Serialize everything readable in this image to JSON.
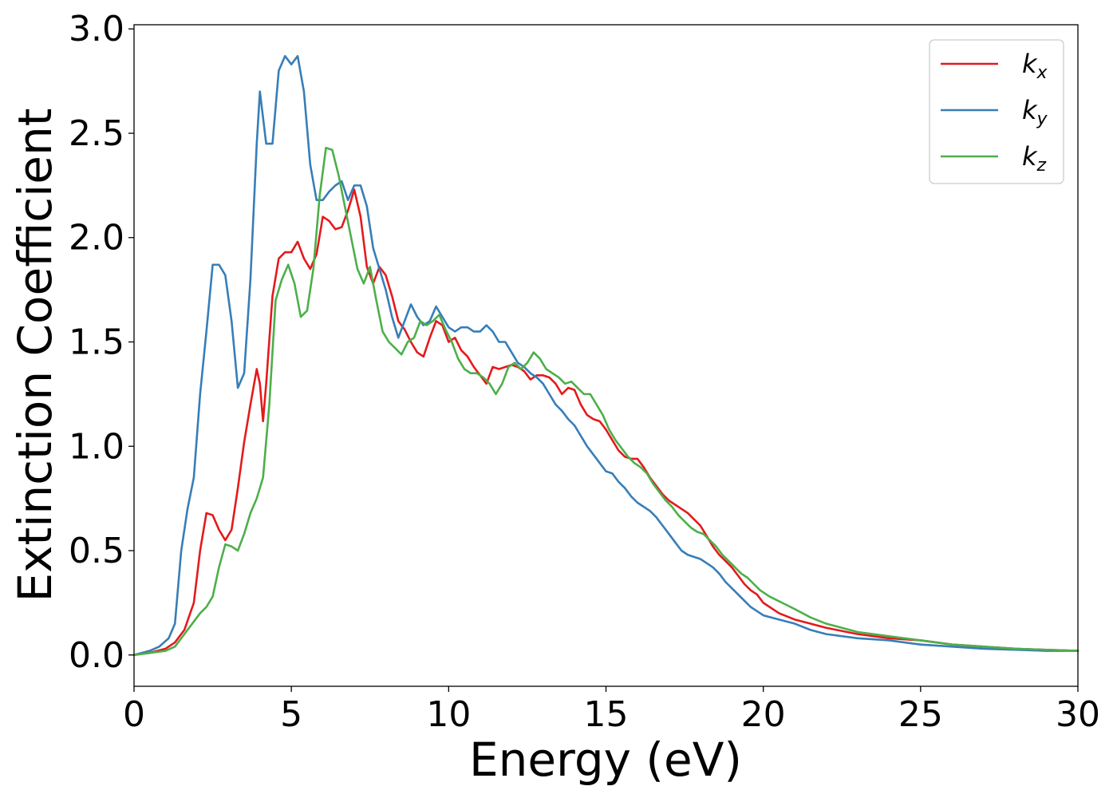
{
  "chart_data": {
    "type": "line",
    "xlabel": "Energy (eV)",
    "ylabel": "Extinction Coefficient",
    "xlim": [
      0,
      30
    ],
    "ylim": [
      -0.15,
      3.02
    ],
    "xticks": [
      0,
      5,
      10,
      15,
      20,
      25,
      30
    ],
    "xtick_labels": [
      "0",
      "5",
      "10",
      "15",
      "20",
      "25",
      "30"
    ],
    "yticks": [
      0.0,
      0.5,
      1.0,
      1.5,
      2.0,
      2.5,
      3.0
    ],
    "ytick_labels": [
      "0.0",
      "0.5",
      "1.0",
      "1.5",
      "2.0",
      "2.5",
      "3.0"
    ],
    "grid": false,
    "legend_position": "top-right",
    "series": [
      {
        "name": "k_x",
        "label_main": "k",
        "label_sub": "x",
        "color": "#e41a1c",
        "x": [
          0,
          0.5,
          1.0,
          1.3,
          1.6,
          1.9,
          2.1,
          2.3,
          2.5,
          2.7,
          2.9,
          3.1,
          3.3,
          3.5,
          3.7,
          3.9,
          4.0,
          4.1,
          4.2,
          4.4,
          4.6,
          4.8,
          5.0,
          5.2,
          5.4,
          5.6,
          5.8,
          6.0,
          6.2,
          6.4,
          6.6,
          6.8,
          7.0,
          7.2,
          7.4,
          7.6,
          7.8,
          8.0,
          8.2,
          8.4,
          8.6,
          8.8,
          9.0,
          9.2,
          9.4,
          9.6,
          9.8,
          10.0,
          10.2,
          10.4,
          10.6,
          10.8,
          11.0,
          11.2,
          11.4,
          11.6,
          11.8,
          12.0,
          12.2,
          12.4,
          12.6,
          12.8,
          13.0,
          13.2,
          13.4,
          13.6,
          13.8,
          14.0,
          14.2,
          14.4,
          14.6,
          14.8,
          15.0,
          15.2,
          15.4,
          15.6,
          15.8,
          16.0,
          16.2,
          16.4,
          16.6,
          16.8,
          17.0,
          17.2,
          17.4,
          17.6,
          17.8,
          18.0,
          18.2,
          18.4,
          18.6,
          18.8,
          19.0,
          19.2,
          19.4,
          19.6,
          19.8,
          20.0,
          20.5,
          21.0,
          21.5,
          22.0,
          23.0,
          24.0,
          25.0,
          26.0,
          27.0,
          28.0,
          29.0,
          30.0
        ],
        "values": [
          0.0,
          0.01,
          0.03,
          0.06,
          0.12,
          0.25,
          0.5,
          0.68,
          0.67,
          0.6,
          0.55,
          0.6,
          0.8,
          1.02,
          1.2,
          1.37,
          1.3,
          1.12,
          1.3,
          1.72,
          1.9,
          1.93,
          1.93,
          1.98,
          1.9,
          1.85,
          1.92,
          2.1,
          2.08,
          2.04,
          2.05,
          2.13,
          2.23,
          2.1,
          1.86,
          1.78,
          1.86,
          1.82,
          1.72,
          1.6,
          1.56,
          1.5,
          1.45,
          1.43,
          1.52,
          1.6,
          1.58,
          1.5,
          1.52,
          1.46,
          1.43,
          1.38,
          1.34,
          1.3,
          1.38,
          1.37,
          1.38,
          1.39,
          1.38,
          1.36,
          1.32,
          1.34,
          1.34,
          1.33,
          1.3,
          1.25,
          1.28,
          1.27,
          1.2,
          1.15,
          1.13,
          1.12,
          1.08,
          1.03,
          0.98,
          0.95,
          0.94,
          0.94,
          0.9,
          0.85,
          0.81,
          0.77,
          0.74,
          0.72,
          0.7,
          0.68,
          0.65,
          0.62,
          0.57,
          0.52,
          0.48,
          0.45,
          0.42,
          0.38,
          0.34,
          0.31,
          0.29,
          0.25,
          0.2,
          0.17,
          0.15,
          0.13,
          0.1,
          0.08,
          0.07,
          0.05,
          0.04,
          0.03,
          0.025,
          0.02
        ]
      },
      {
        "name": "k_y",
        "label_main": "k",
        "label_sub": "y",
        "color": "#377eb8",
        "x": [
          0,
          0.5,
          0.8,
          1.1,
          1.3,
          1.5,
          1.7,
          1.9,
          2.1,
          2.3,
          2.5,
          2.7,
          2.9,
          3.1,
          3.3,
          3.5,
          3.7,
          3.9,
          4.0,
          4.2,
          4.4,
          4.6,
          4.8,
          5.0,
          5.2,
          5.4,
          5.6,
          5.8,
          6.0,
          6.2,
          6.4,
          6.6,
          6.8,
          7.0,
          7.2,
          7.4,
          7.6,
          7.8,
          8.0,
          8.2,
          8.4,
          8.6,
          8.8,
          9.0,
          9.2,
          9.4,
          9.6,
          9.8,
          10.0,
          10.2,
          10.4,
          10.6,
          10.8,
          11.0,
          11.2,
          11.4,
          11.6,
          11.8,
          12.0,
          12.2,
          12.4,
          12.6,
          12.8,
          13.0,
          13.2,
          13.4,
          13.6,
          13.8,
          14.0,
          14.2,
          14.4,
          14.6,
          14.8,
          15.0,
          15.2,
          15.4,
          15.6,
          15.8,
          16.0,
          16.2,
          16.4,
          16.6,
          16.8,
          17.0,
          17.2,
          17.4,
          17.6,
          17.8,
          18.0,
          18.2,
          18.4,
          18.6,
          18.8,
          19.0,
          19.2,
          19.4,
          19.6,
          19.8,
          20.0,
          20.5,
          21.0,
          21.5,
          22.0,
          23.0,
          24.0,
          25.0,
          26.0,
          27.0,
          28.0,
          29.0,
          30.0
        ],
        "values": [
          0.0,
          0.02,
          0.04,
          0.08,
          0.15,
          0.5,
          0.7,
          0.85,
          1.25,
          1.55,
          1.87,
          1.87,
          1.82,
          1.6,
          1.28,
          1.35,
          1.8,
          2.45,
          2.7,
          2.45,
          2.45,
          2.8,
          2.87,
          2.83,
          2.87,
          2.7,
          2.35,
          2.18,
          2.18,
          2.22,
          2.25,
          2.27,
          2.18,
          2.25,
          2.25,
          2.15,
          1.95,
          1.85,
          1.75,
          1.62,
          1.52,
          1.6,
          1.68,
          1.62,
          1.58,
          1.6,
          1.67,
          1.62,
          1.57,
          1.55,
          1.57,
          1.57,
          1.55,
          1.55,
          1.58,
          1.55,
          1.5,
          1.5,
          1.45,
          1.4,
          1.38,
          1.35,
          1.33,
          1.3,
          1.25,
          1.2,
          1.17,
          1.13,
          1.1,
          1.05,
          1.0,
          0.96,
          0.92,
          0.88,
          0.87,
          0.83,
          0.8,
          0.76,
          0.73,
          0.71,
          0.69,
          0.66,
          0.62,
          0.58,
          0.54,
          0.5,
          0.48,
          0.47,
          0.46,
          0.44,
          0.42,
          0.39,
          0.35,
          0.32,
          0.29,
          0.26,
          0.23,
          0.21,
          0.19,
          0.17,
          0.15,
          0.12,
          0.1,
          0.08,
          0.07,
          0.05,
          0.04,
          0.03,
          0.025,
          0.02,
          0.02
        ]
      },
      {
        "name": "k_z",
        "label_main": "k",
        "label_sub": "z",
        "color": "#4daf4a",
        "x": [
          0,
          0.5,
          1.0,
          1.3,
          1.6,
          1.9,
          2.1,
          2.3,
          2.5,
          2.7,
          2.9,
          3.1,
          3.3,
          3.5,
          3.7,
          3.9,
          4.1,
          4.3,
          4.5,
          4.7,
          4.9,
          5.1,
          5.3,
          5.5,
          5.7,
          5.9,
          6.1,
          6.3,
          6.5,
          6.7,
          6.9,
          7.1,
          7.3,
          7.5,
          7.7,
          7.9,
          8.1,
          8.3,
          8.5,
          8.7,
          8.9,
          9.1,
          9.3,
          9.5,
          9.7,
          9.9,
          10.1,
          10.3,
          10.5,
          10.7,
          10.9,
          11.1,
          11.3,
          11.5,
          11.7,
          11.9,
          12.1,
          12.3,
          12.5,
          12.7,
          12.9,
          13.1,
          13.3,
          13.5,
          13.7,
          13.9,
          14.1,
          14.3,
          14.5,
          14.7,
          14.9,
          15.1,
          15.3,
          15.5,
          15.7,
          15.9,
          16.1,
          16.3,
          16.5,
          16.7,
          16.9,
          17.1,
          17.3,
          17.5,
          17.7,
          17.9,
          18.1,
          18.3,
          18.5,
          18.7,
          18.9,
          19.1,
          19.3,
          19.5,
          19.7,
          19.9,
          20.2,
          20.6,
          21.0,
          21.5,
          22.0,
          23.0,
          24.0,
          25.0,
          26.0,
          27.0,
          28.0,
          29.0,
          30.0
        ],
        "values": [
          0.0,
          0.01,
          0.02,
          0.04,
          0.1,
          0.16,
          0.2,
          0.23,
          0.28,
          0.42,
          0.53,
          0.52,
          0.5,
          0.58,
          0.68,
          0.75,
          0.85,
          1.2,
          1.7,
          1.8,
          1.87,
          1.78,
          1.62,
          1.65,
          1.85,
          2.2,
          2.43,
          2.42,
          2.3,
          2.15,
          2.0,
          1.85,
          1.78,
          1.86,
          1.7,
          1.55,
          1.5,
          1.47,
          1.44,
          1.5,
          1.52,
          1.6,
          1.58,
          1.6,
          1.63,
          1.56,
          1.5,
          1.42,
          1.37,
          1.35,
          1.35,
          1.33,
          1.3,
          1.25,
          1.3,
          1.38,
          1.4,
          1.37,
          1.4,
          1.45,
          1.42,
          1.37,
          1.35,
          1.33,
          1.3,
          1.31,
          1.28,
          1.25,
          1.25,
          1.2,
          1.15,
          1.08,
          1.03,
          0.99,
          0.95,
          0.92,
          0.9,
          0.87,
          0.82,
          0.78,
          0.74,
          0.71,
          0.67,
          0.64,
          0.61,
          0.59,
          0.58,
          0.55,
          0.52,
          0.48,
          0.45,
          0.42,
          0.39,
          0.37,
          0.34,
          0.31,
          0.28,
          0.25,
          0.22,
          0.18,
          0.15,
          0.11,
          0.09,
          0.07,
          0.05,
          0.04,
          0.03,
          0.025,
          0.02
        ]
      }
    ]
  }
}
